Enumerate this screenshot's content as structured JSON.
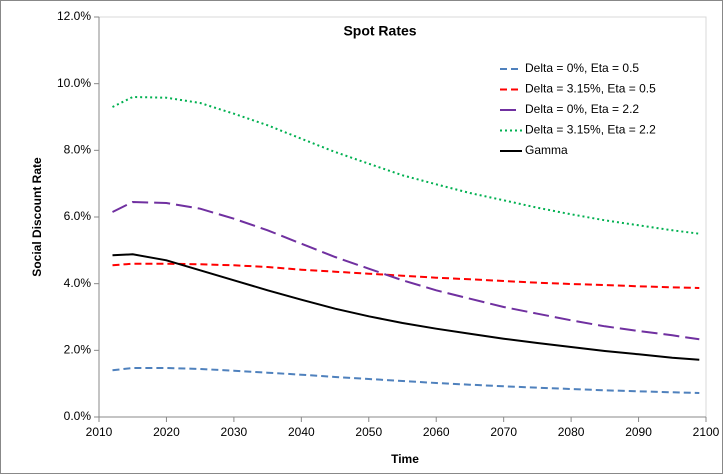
{
  "chart_data": {
    "type": "line",
    "title": "Spot Rates",
    "x_label": "Time",
    "y_label": "Social Discount Rate",
    "x": [
      2012,
      2015,
      2020,
      2025,
      2030,
      2035,
      2040,
      2045,
      2050,
      2055,
      2060,
      2065,
      2070,
      2075,
      2080,
      2085,
      2090,
      2095,
      2099
    ],
    "series": [
      {
        "name": "Delta = 0%, Eta = 0.5",
        "color": "#4f81bd",
        "line_style": "dash",
        "values": [
          1.4,
          1.47,
          1.47,
          1.44,
          1.39,
          1.33,
          1.27,
          1.2,
          1.14,
          1.08,
          1.02,
          0.97,
          0.92,
          0.88,
          0.84,
          0.8,
          0.77,
          0.74,
          0.72
        ]
      },
      {
        "name": "Delta = 3.15%, Eta = 0.5",
        "color": "#ff0000",
        "line_style": "dash",
        "values": [
          4.55,
          4.6,
          4.6,
          4.58,
          4.55,
          4.5,
          4.42,
          4.36,
          4.3,
          4.24,
          4.18,
          4.13,
          4.08,
          4.03,
          3.99,
          3.96,
          3.92,
          3.89,
          3.87
        ]
      },
      {
        "name": "Delta = 0%, Eta = 2.2",
        "color": "#7030a0",
        "line_style": "long-dash",
        "values": [
          6.15,
          6.45,
          6.42,
          6.25,
          5.95,
          5.6,
          5.2,
          4.8,
          4.45,
          4.1,
          3.8,
          3.55,
          3.3,
          3.1,
          2.9,
          2.72,
          2.58,
          2.45,
          2.33
        ]
      },
      {
        "name": "Delta = 3.15%, Eta = 2.2",
        "color": "#00b050",
        "line_style": "dot",
        "values": [
          9.3,
          9.6,
          9.58,
          9.42,
          9.1,
          8.75,
          8.35,
          7.95,
          7.6,
          7.25,
          6.98,
          6.72,
          6.5,
          6.28,
          6.08,
          5.9,
          5.75,
          5.6,
          5.5
        ]
      },
      {
        "name": "Gamma",
        "color": "#000000",
        "line_style": "solid",
        "values": [
          4.85,
          4.88,
          4.7,
          4.4,
          4.1,
          3.8,
          3.52,
          3.25,
          3.02,
          2.82,
          2.65,
          2.5,
          2.35,
          2.22,
          2.1,
          1.98,
          1.88,
          1.78,
          1.72
        ]
      }
    ],
    "xlim": [
      2010,
      2100
    ],
    "xticks": [
      2010,
      2020,
      2030,
      2040,
      2050,
      2060,
      2070,
      2080,
      2090,
      2100
    ],
    "ylim": [
      0,
      12
    ],
    "yticks": [
      {
        "value": 0,
        "label": "0.0%"
      },
      {
        "value": 2,
        "label": "2.0%"
      },
      {
        "value": 4,
        "label": "4.0%"
      },
      {
        "value": 6,
        "label": "6.0%"
      },
      {
        "value": 8,
        "label": "8.0%"
      },
      {
        "value": 10,
        "label": "10.0%"
      },
      {
        "value": 12,
        "label": "12.0%"
      }
    ],
    "grid": false,
    "legend_position": "upper-right"
  }
}
